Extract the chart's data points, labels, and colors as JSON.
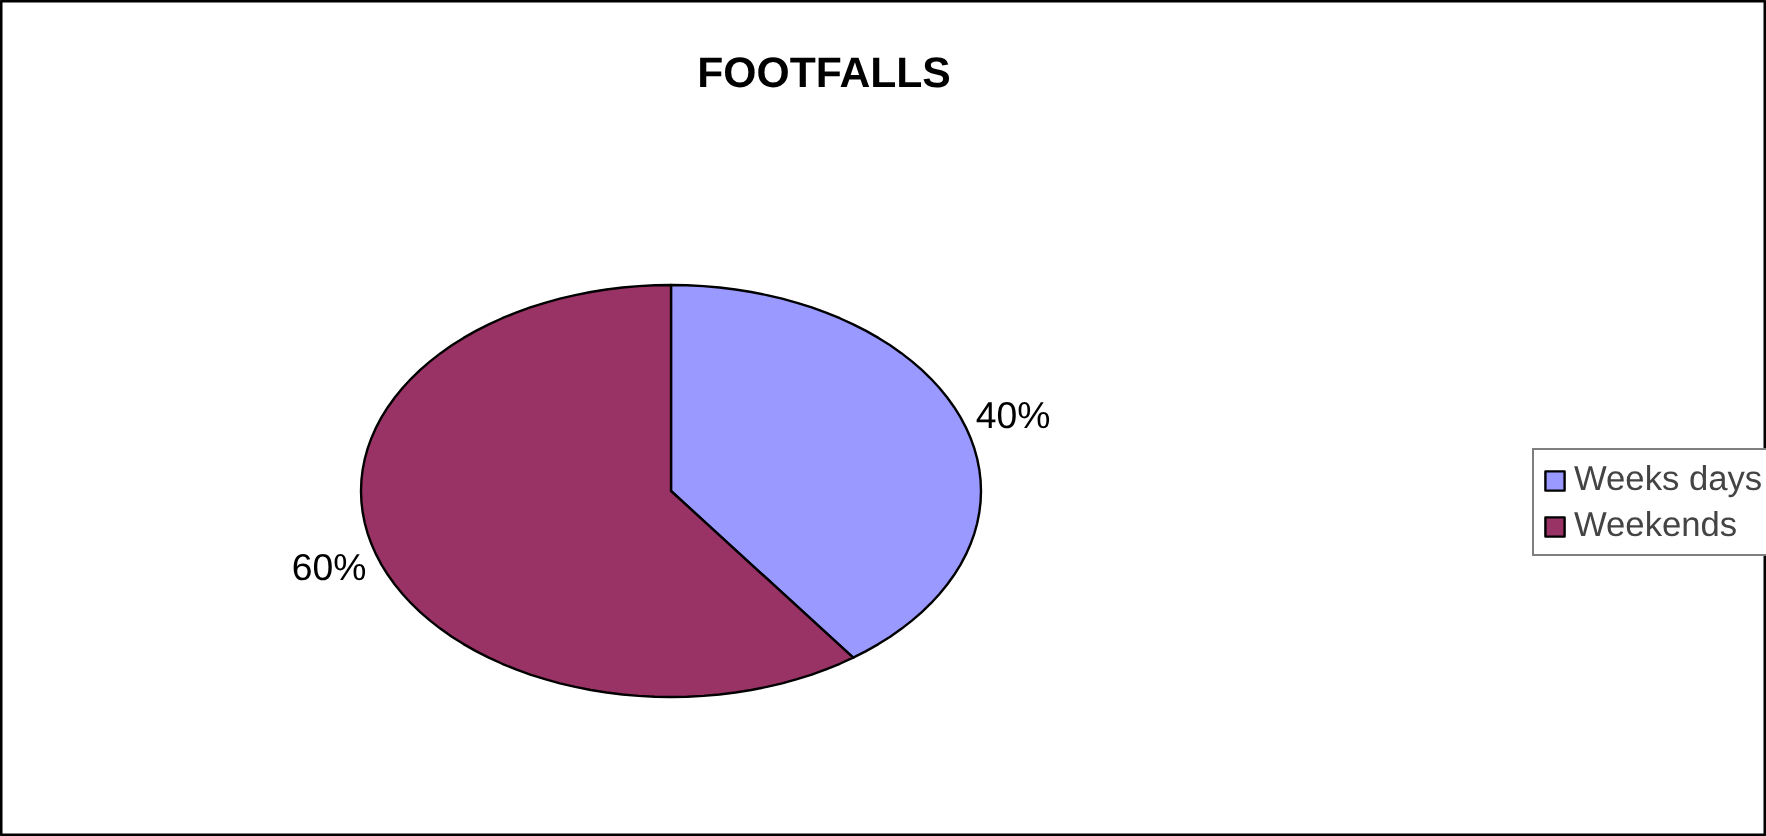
{
  "chart_data": {
    "type": "pie",
    "title": "FOOTFALLS",
    "categories": [
      "Weeks days",
      "Weekends"
    ],
    "values": [
      40,
      60
    ],
    "colors": [
      "#9999ff",
      "#993366"
    ],
    "value_labels": [
      "40%",
      "60%"
    ],
    "legend": "right"
  }
}
